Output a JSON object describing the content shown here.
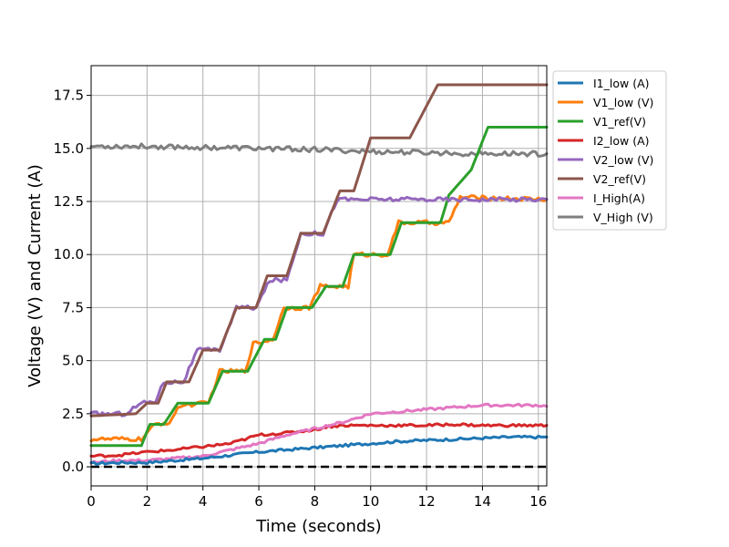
{
  "chart_data": {
    "type": "line",
    "title": "",
    "xlabel": "Time (seconds)",
    "ylabel": "Voltage (V) and Current (A)",
    "xlim": [
      0,
      16.3
    ],
    "ylim": [
      -0.9,
      18.9
    ],
    "x_ticks": [
      0,
      2,
      4,
      6,
      8,
      10,
      12,
      14,
      16
    ],
    "x_tick_labels": [
      "0",
      "2",
      "4",
      "6",
      "8",
      "10",
      "12",
      "14",
      "16"
    ],
    "y_ticks": [
      0,
      2.5,
      5,
      7.5,
      10,
      12.5,
      15,
      17.5
    ],
    "y_tick_labels": [
      "0.0",
      "2.5",
      "5.0",
      "7.5",
      "10.0",
      "12.5",
      "15.0",
      "17.5"
    ],
    "grid": true,
    "legend_position": "outside-right-top",
    "series": [
      {
        "name": "I1_low (A)",
        "color": "#1f77b4",
        "points": [
          [
            0,
            0.15
          ],
          [
            1,
            0.2
          ],
          [
            2,
            0.2
          ],
          [
            3,
            0.3
          ],
          [
            4,
            0.4
          ],
          [
            5,
            0.55
          ],
          [
            6,
            0.7
          ],
          [
            7,
            0.8
          ],
          [
            8,
            0.9
          ],
          [
            9,
            1.0
          ],
          [
            10,
            1.1
          ],
          [
            11,
            1.2
          ],
          [
            12,
            1.25
          ],
          [
            13,
            1.3
          ],
          [
            14,
            1.35
          ],
          [
            15,
            1.4
          ],
          [
            16,
            1.4
          ],
          [
            16.3,
            1.4
          ]
        ]
      },
      {
        "name": "V1_low (V)",
        "color": "#ff7f0e",
        "points": [
          [
            0,
            1.3
          ],
          [
            1.8,
            1.3
          ],
          [
            2.3,
            2.0
          ],
          [
            2.8,
            2.1
          ],
          [
            3.2,
            2.9
          ],
          [
            4.2,
            3.0
          ],
          [
            4.6,
            4.5
          ],
          [
            5.5,
            4.5
          ],
          [
            5.8,
            5.8
          ],
          [
            6.5,
            6.0
          ],
          [
            6.9,
            7.5
          ],
          [
            7.8,
            7.5
          ],
          [
            8.2,
            8.5
          ],
          [
            9.2,
            8.5
          ],
          [
            9.4,
            10.0
          ],
          [
            10.6,
            10.0
          ],
          [
            11.0,
            11.5
          ],
          [
            12.8,
            11.5
          ],
          [
            13.2,
            12.7
          ],
          [
            16.3,
            12.6
          ]
        ]
      },
      {
        "name": "V1_ref(V)",
        "color": "#2ca02c",
        "points": [
          [
            0,
            1.0
          ],
          [
            1.8,
            1.0
          ],
          [
            2.1,
            2.0
          ],
          [
            2.6,
            2.0
          ],
          [
            3.1,
            3.0
          ],
          [
            4.2,
            3.0
          ],
          [
            4.7,
            4.5
          ],
          [
            5.6,
            4.5
          ],
          [
            6.2,
            6.0
          ],
          [
            6.6,
            6.0
          ],
          [
            7.0,
            7.5
          ],
          [
            7.9,
            7.5
          ],
          [
            8.4,
            8.5
          ],
          [
            9.0,
            8.5
          ],
          [
            9.4,
            10.0
          ],
          [
            10.7,
            10.0
          ],
          [
            11.1,
            11.5
          ],
          [
            12.5,
            11.5
          ],
          [
            12.8,
            12.8
          ],
          [
            13.6,
            14.0
          ],
          [
            14.2,
            16.0
          ],
          [
            16.3,
            16.0
          ]
        ]
      },
      {
        "name": "I2_low (A)",
        "color": "#d62728",
        "points": [
          [
            0,
            0.5
          ],
          [
            1,
            0.55
          ],
          [
            2,
            0.7
          ],
          [
            3,
            0.8
          ],
          [
            4,
            0.95
          ],
          [
            5,
            1.1
          ],
          [
            6,
            1.5
          ],
          [
            7,
            1.6
          ],
          [
            8,
            1.75
          ],
          [
            8.5,
            1.9
          ],
          [
            9,
            1.95
          ],
          [
            10,
            1.95
          ],
          [
            11,
            1.95
          ],
          [
            12,
            1.95
          ],
          [
            13,
            2.0
          ],
          [
            14,
            1.95
          ],
          [
            15,
            1.95
          ],
          [
            16.3,
            1.95
          ]
        ]
      },
      {
        "name": "V2_low (V)",
        "color": "#9467bd",
        "points": [
          [
            0,
            2.5
          ],
          [
            1.2,
            2.5
          ],
          [
            1.8,
            3.0
          ],
          [
            2.3,
            3.1
          ],
          [
            2.6,
            4.0
          ],
          [
            3.3,
            4.0
          ],
          [
            3.8,
            5.5
          ],
          [
            4.6,
            5.5
          ],
          [
            5.2,
            7.5
          ],
          [
            5.9,
            7.5
          ],
          [
            6.4,
            8.8
          ],
          [
            7.0,
            8.8
          ],
          [
            7.5,
            11.0
          ],
          [
            8.3,
            11.0
          ],
          [
            8.8,
            12.6
          ],
          [
            16.3,
            12.6
          ]
        ]
      },
      {
        "name": "V2_ref(V)",
        "color": "#8c564b",
        "points": [
          [
            0,
            2.4
          ],
          [
            1.6,
            2.5
          ],
          [
            2.0,
            3.0
          ],
          [
            2.4,
            3.0
          ],
          [
            2.7,
            4.0
          ],
          [
            3.5,
            4.0
          ],
          [
            4.0,
            5.5
          ],
          [
            4.6,
            5.5
          ],
          [
            5.2,
            7.5
          ],
          [
            5.9,
            7.5
          ],
          [
            6.3,
            9.0
          ],
          [
            7.0,
            9.0
          ],
          [
            7.5,
            11.0
          ],
          [
            8.3,
            11.0
          ],
          [
            8.9,
            13.0
          ],
          [
            9.4,
            13.0
          ],
          [
            10.0,
            15.5
          ],
          [
            11.4,
            15.5
          ],
          [
            12.4,
            18.0
          ],
          [
            16.3,
            18.0
          ]
        ]
      },
      {
        "name": "I_High(A)",
        "color": "#e377c2",
        "points": [
          [
            0,
            0.2
          ],
          [
            1,
            0.3
          ],
          [
            2,
            0.3
          ],
          [
            3,
            0.4
          ],
          [
            4,
            0.5
          ],
          [
            5,
            0.8
          ],
          [
            6,
            1.1
          ],
          [
            7,
            1.5
          ],
          [
            8,
            1.8
          ],
          [
            9,
            2.1
          ],
          [
            10,
            2.5
          ],
          [
            11,
            2.6
          ],
          [
            12,
            2.7
          ],
          [
            13,
            2.8
          ],
          [
            14,
            2.9
          ],
          [
            15,
            2.9
          ],
          [
            16,
            2.9
          ],
          [
            16.3,
            2.85
          ]
        ]
      },
      {
        "name": "V_High (V)",
        "color": "#7f7f7f",
        "points": [
          [
            0,
            15.1
          ],
          [
            2,
            15.1
          ],
          [
            4,
            15.05
          ],
          [
            6,
            15.0
          ],
          [
            8,
            14.95
          ],
          [
            9,
            14.9
          ],
          [
            10,
            14.85
          ],
          [
            12,
            14.8
          ],
          [
            14,
            14.75
          ],
          [
            16.3,
            14.75
          ]
        ]
      }
    ],
    "reference_line": {
      "y": 0,
      "color": "#000000",
      "style": "dashed"
    }
  }
}
